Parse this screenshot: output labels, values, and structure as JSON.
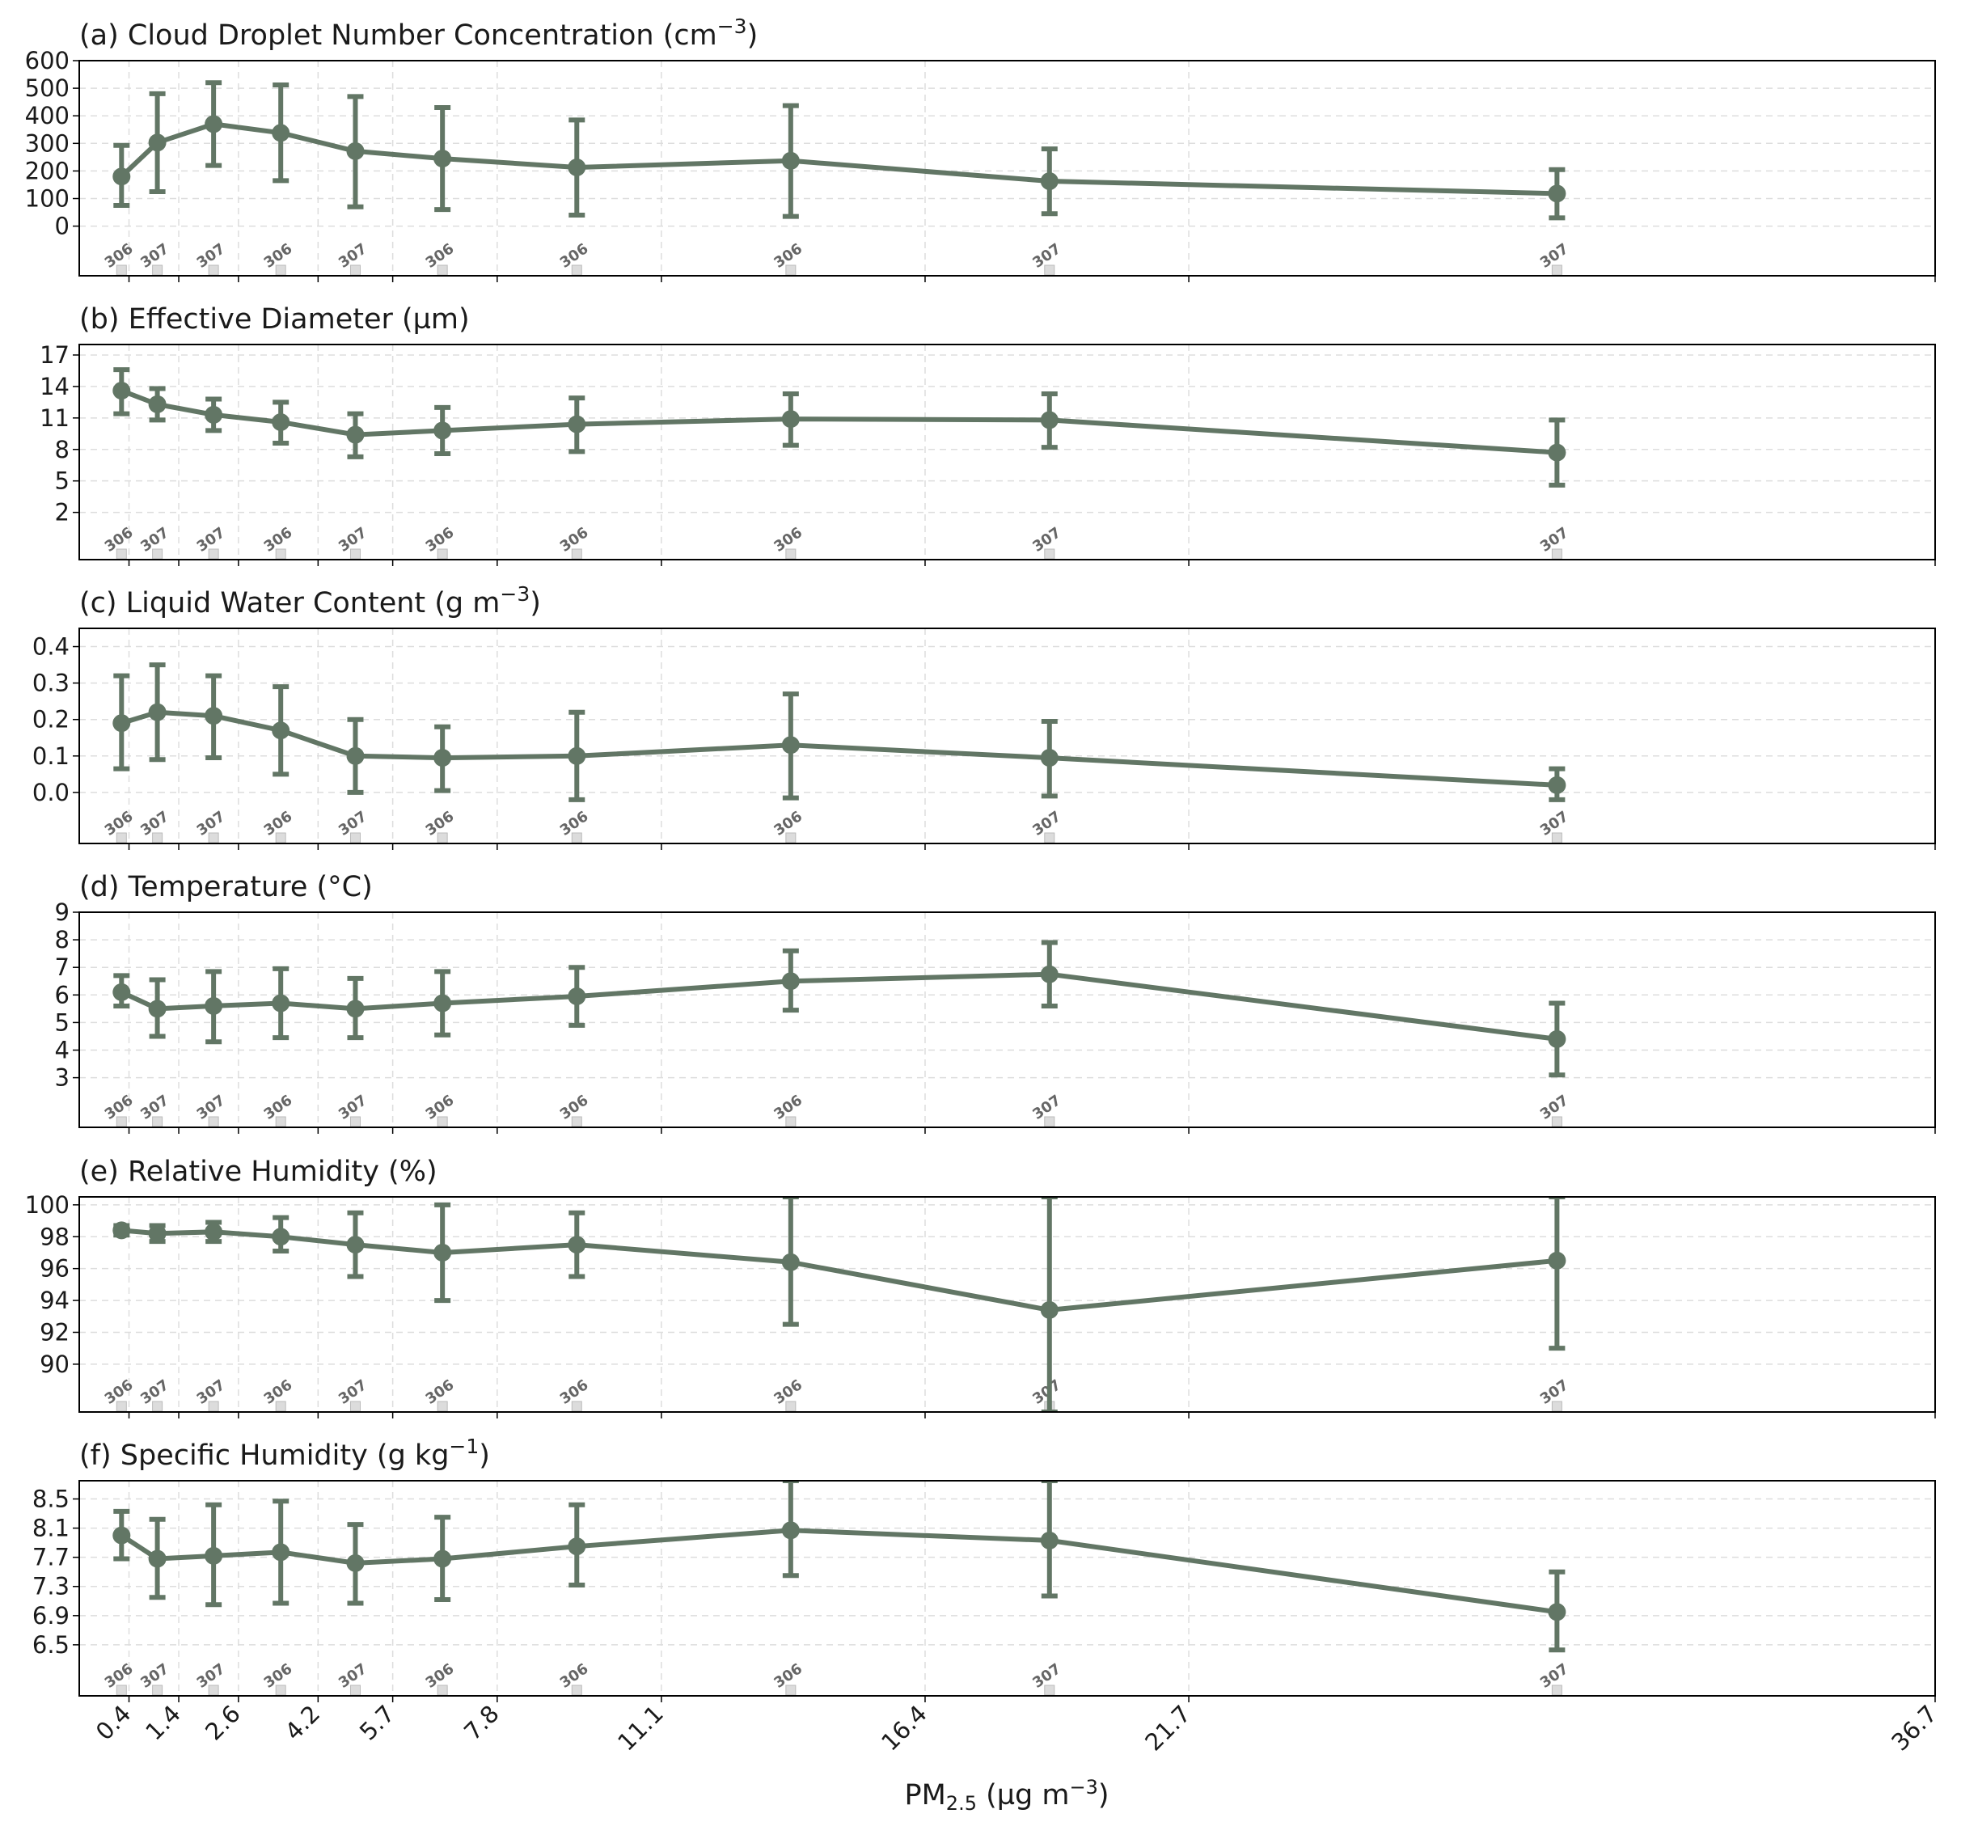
{
  "figure": {
    "xlabel_main": "PM",
    "xlabel_sub": "2.5",
    "xlabel_rest": " (µg m",
    "xlabel_sup": "−3",
    "xlabel_close": ")",
    "color_series": "#627665",
    "color_grid": "#dddddd",
    "color_count_box": "#dcdcdc",
    "color_count_text": "#666666"
  },
  "chart_data": {
    "type": "line",
    "x_axis": {
      "tick_labels": [
        "0.4",
        "1.4",
        "2.6",
        "4.2",
        "5.7",
        "7.8",
        "11.1",
        "16.4",
        "21.7",
        "36.7"
      ],
      "note": "nonlinear (quantile-spaced) PM2.5 axis"
    },
    "x_positions": [
      0.25,
      0.97,
      2.1,
      3.45,
      4.95,
      6.7,
      9.4,
      13.7,
      18.9,
      29.1
    ],
    "counts": [
      "306",
      "307",
      "307",
      "306",
      "307",
      "306",
      "306",
      "306",
      "307",
      "307"
    ],
    "panels": [
      {
        "id": "cdnc",
        "title": "(a) Cloud Droplet Number Concentration (cm",
        "title_sup": "−3",
        "title_close": ")",
        "yticks": [
          "600",
          "500",
          "400",
          "300",
          "200",
          "100",
          "0"
        ],
        "ytick_values": [
          600,
          500,
          400,
          300,
          200,
          100,
          0
        ],
        "ylim": [
          -180,
          600
        ],
        "values": [
          180,
          303,
          370,
          338,
          272,
          245,
          213,
          237,
          163,
          118
        ],
        "err_low": [
          75,
          125,
          220,
          165,
          70,
          60,
          40,
          35,
          45,
          30
        ],
        "err_high": [
          293,
          480,
          520,
          512,
          470,
          430,
          385,
          437,
          280,
          205
        ]
      },
      {
        "id": "deff",
        "title": "(b) Effective Diameter (µm)",
        "title_sup": "",
        "title_close": "",
        "yticks": [
          "17",
          "14",
          "11",
          "8",
          "5",
          "2"
        ],
        "ytick_values": [
          17,
          14,
          11,
          8,
          5,
          2
        ],
        "ylim": [
          -2.5,
          18
        ],
        "values": [
          13.6,
          12.3,
          11.3,
          10.6,
          9.4,
          9.8,
          10.4,
          10.9,
          10.8,
          7.7
        ],
        "err_low": [
          11.4,
          10.8,
          9.8,
          8.6,
          7.3,
          7.6,
          7.8,
          8.4,
          8.2,
          4.6
        ],
        "err_high": [
          15.6,
          13.8,
          12.8,
          12.5,
          11.4,
          12.0,
          12.9,
          13.3,
          13.3,
          10.8
        ]
      },
      {
        "id": "lwc",
        "title": "(c) Liquid Water Content (g m",
        "title_sup": "−3",
        "title_close": ")",
        "yticks": [
          "0.4",
          "0.3",
          "0.2",
          "0.1",
          "0.0"
        ],
        "ytick_values": [
          0.4,
          0.3,
          0.2,
          0.1,
          0.0
        ],
        "ylim": [
          -0.14,
          0.45
        ],
        "values": [
          0.19,
          0.22,
          0.21,
          0.17,
          0.1,
          0.095,
          0.1,
          0.13,
          0.095,
          0.02
        ],
        "err_low": [
          0.065,
          0.09,
          0.095,
          0.05,
          0.0,
          0.005,
          -0.02,
          -0.015,
          -0.01,
          -0.02
        ],
        "err_high": [
          0.32,
          0.35,
          0.32,
          0.29,
          0.2,
          0.18,
          0.22,
          0.27,
          0.195,
          0.065
        ]
      },
      {
        "id": "temp",
        "title": "(d) Temperature (°C)",
        "title_sup": "",
        "title_close": "",
        "yticks": [
          "9",
          "8",
          "7",
          "6",
          "5",
          "4",
          "3"
        ],
        "ytick_values": [
          9,
          8,
          7,
          6,
          5,
          4,
          3
        ],
        "ylim": [
          1.2,
          9
        ],
        "values": [
          6.1,
          5.5,
          5.6,
          5.7,
          5.5,
          5.7,
          5.95,
          6.5,
          6.75,
          4.4
        ],
        "err_low": [
          5.6,
          4.5,
          4.3,
          4.45,
          4.45,
          4.55,
          4.9,
          5.45,
          5.6,
          3.1
        ],
        "err_high": [
          6.7,
          6.55,
          6.85,
          6.95,
          6.6,
          6.85,
          7.0,
          7.6,
          7.9,
          5.7
        ]
      },
      {
        "id": "rh",
        "title": "(e) Relative Humidity (%)",
        "title_sup": "",
        "title_close": "",
        "yticks": [
          "100",
          "98",
          "96",
          "94",
          "92",
          "90"
        ],
        "ytick_values": [
          100,
          98,
          96,
          94,
          92,
          90
        ],
        "ylim": [
          87,
          100.5
        ],
        "values": [
          98.4,
          98.2,
          98.3,
          98.0,
          97.5,
          97.0,
          97.5,
          96.4,
          93.4,
          96.5
        ],
        "err_low": [
          98.1,
          97.7,
          97.7,
          97.1,
          95.5,
          94.0,
          95.5,
          92.5,
          87.0,
          91.0
        ],
        "err_high": [
          98.7,
          98.7,
          98.9,
          99.2,
          99.5,
          100.0,
          99.5,
          100.5,
          100.5,
          100.5
        ]
      },
      {
        "id": "sh",
        "title": "(f) Specific Humidity (g kg",
        "title_sup": "−1",
        "title_close": ")",
        "yticks": [
          "8.5",
          "8.1",
          "7.7",
          "7.3",
          "6.9",
          "6.5"
        ],
        "ytick_values": [
          8.5,
          8.1,
          7.7,
          7.3,
          6.9,
          6.5
        ],
        "ylim": [
          5.8,
          8.75
        ],
        "values": [
          8.0,
          7.68,
          7.72,
          7.77,
          7.62,
          7.68,
          7.85,
          8.07,
          7.93,
          6.95
        ],
        "err_low": [
          7.68,
          7.15,
          7.05,
          7.07,
          7.07,
          7.12,
          7.32,
          7.45,
          7.17,
          6.43
        ],
        "err_high": [
          8.33,
          8.22,
          8.42,
          8.47,
          8.15,
          8.25,
          8.42,
          8.75,
          8.75,
          7.5
        ]
      }
    ]
  }
}
